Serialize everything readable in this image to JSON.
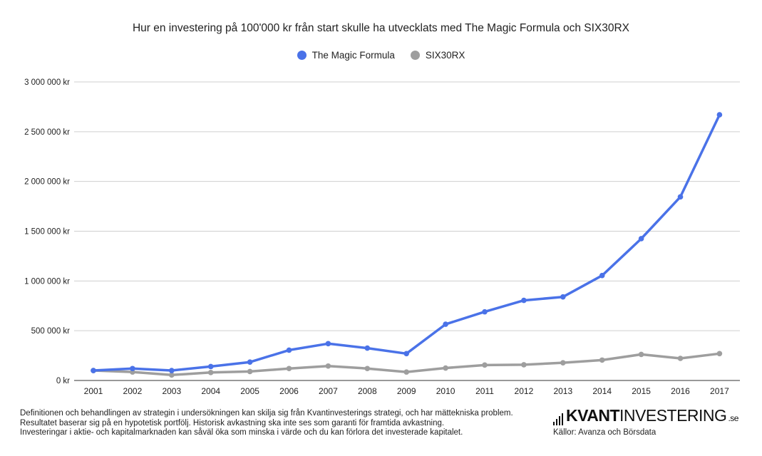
{
  "chart_data": {
    "type": "line",
    "title": "Hur en investering på 100'000 kr från start skulle ha utvecklats med The Magic Formula och SIX30RX",
    "categories": [
      "2001",
      "2002",
      "2003",
      "2004",
      "2005",
      "2006",
      "2007",
      "2008",
      "2009",
      "2010",
      "2011",
      "2012",
      "2013",
      "2014",
      "2015",
      "2016",
      "2017"
    ],
    "series": [
      {
        "name": "The Magic Formula",
        "color": "#4a72e8",
        "values": [
          100000,
          120000,
          100000,
          140000,
          185000,
          305000,
          370000,
          325000,
          270000,
          565000,
          690000,
          805000,
          840000,
          1055000,
          1425000,
          1845000,
          2670000
        ]
      },
      {
        "name": "SIX30RX",
        "color": "#9e9e9e",
        "values": [
          100000,
          85000,
          55000,
          80000,
          90000,
          120000,
          145000,
          120000,
          85000,
          125000,
          155000,
          158000,
          178000,
          205000,
          262000,
          222000,
          270000
        ]
      }
    ],
    "ylim": [
      0,
      3000000
    ],
    "yticks": [
      "0 kr",
      "500 000 kr",
      "1 000 000 kr",
      "1 500 000 kr",
      "2 000 000 kr",
      "2 500 000 kr",
      "3 000 000 kr"
    ],
    "grid": true,
    "legend": "top-center"
  },
  "footer": {
    "disclaimer": [
      "Definitionen och behandlingen av strategin i undersökningen kan skilja sig från Kvantinvesterings strategi, och har mättekniska problem.",
      "Resultatet baserar sig på en hypotetisk portfölj. Historisk avkastning ska inte ses som garanti för framtida avkastning.",
      "Investeringar i aktie- och kapitalmarknaden kan såväl öka som minska i värde och du kan förlora det investerade kapitalet."
    ],
    "brand_bold": "KVANT",
    "brand_light": "INVESTERING",
    "brand_tld": ".se",
    "sources": "Källor: Avanza och Börsdata"
  }
}
